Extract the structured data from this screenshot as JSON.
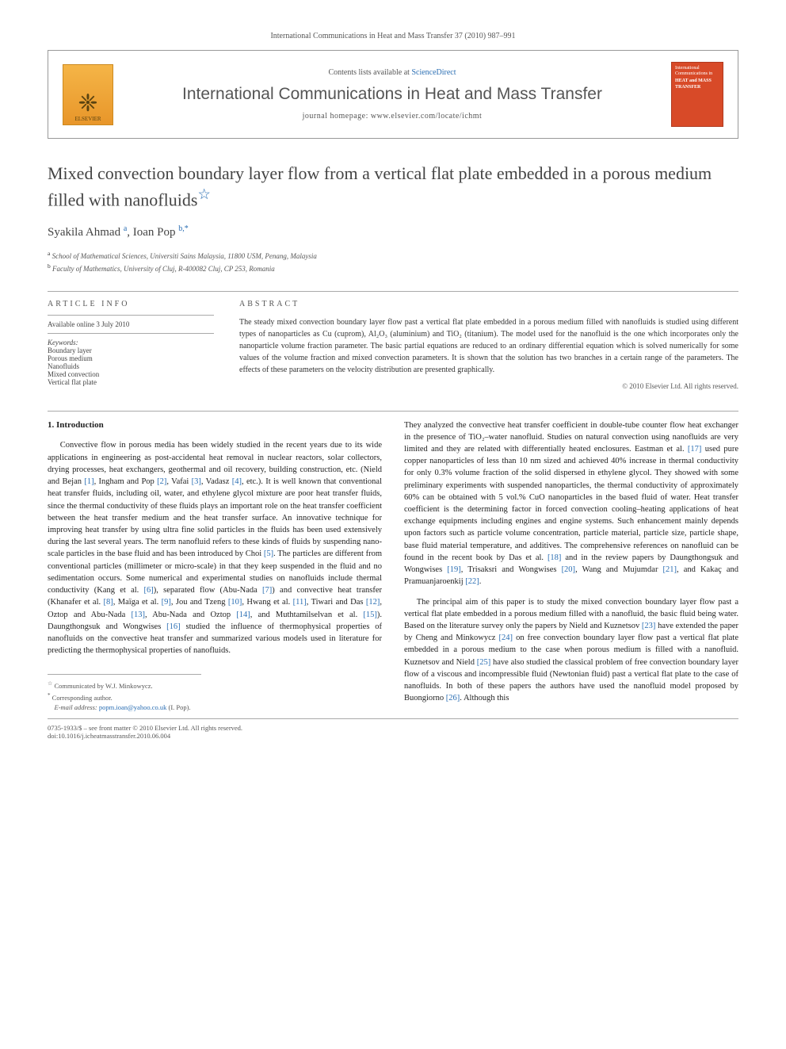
{
  "header": {
    "running": "International Communications in Heat and Mass Transfer 37 (2010) 987–991",
    "contents_line_prefix": "Contents lists available at ",
    "sciencedirect": "ScienceDirect",
    "journal_name": "International Communications in Heat and Mass Transfer",
    "homepage_prefix": "journal homepage: ",
    "homepage_url": "www.elsevier.com/locate/ichmt",
    "elsevier_label": "ELSEVIER",
    "thumb_line1": "International Communications in",
    "thumb_line2": "HEAT and MASS TRANSFER"
  },
  "article": {
    "title": "Mixed convection boundary layer flow from a vertical flat plate embedded in a porous medium filled with nanofluids",
    "star": "☆",
    "authors_html": "Syakila Ahmad <sup>a</sup>, Ioan Pop <sup>b,*</sup>",
    "author1": "Syakila Ahmad",
    "author1_sup": "a",
    "author2": "Ioan Pop",
    "author2_sup": "b,*",
    "affil_a": "School of Mathematical Sciences, Universiti Sains Malaysia, 11800 USM, Penang, Malaysia",
    "affil_b": "Faculty of Mathematics, University of Cluj, R-400082 Cluj, CP 253, Romania"
  },
  "info": {
    "header": "article info",
    "available": "Available online 3 July 2010",
    "keywords_label": "Keywords:",
    "keywords": [
      "Boundary layer",
      "Porous medium",
      "Nanofluids",
      "Mixed convection",
      "Vertical flat plate"
    ]
  },
  "abstract": {
    "header": "abstract",
    "text": "The steady mixed convection boundary layer flow past a vertical flat plate embedded in a porous medium filled with nanofluids is studied using different types of nanoparticles as Cu (cuprom), Al₂O₃ (aluminium) and TiO₂ (titanium). The model used for the nanofluid is the one which incorporates only the nanoparticle volume fraction parameter. The basic partial equations are reduced to an ordinary differential equation which is solved numerically for some values of the volume fraction and mixed convection parameters. It is shown that the solution has two branches in a certain range of the parameters. The effects of these parameters on the velocity distribution are presented graphically.",
    "copyright": "© 2010 Elsevier Ltd. All rights reserved."
  },
  "body": {
    "section_no": "1.",
    "section_title": "Introduction",
    "col1": "Convective flow in porous media has been widely studied in the recent years due to its wide applications in engineering as post-accidental heat removal in nuclear reactors, solar collectors, drying processes, heat exchangers, geothermal and oil recovery, building construction, etc. (Nield and Bejan [1], Ingham and Pop [2], Vafai [3], Vadasz [4], etc.). It is well known that conventional heat transfer fluids, including oil, water, and ethylene glycol mixture are poor heat transfer fluids, since the thermal conductivity of these fluids plays an important role on the heat transfer coefficient between the heat transfer medium and the heat transfer surface. An innovative technique for improving heat transfer by using ultra fine solid particles in the fluids has been used extensively during the last several years. The term nanofluid refers to these kinds of fluids by suspending nano-scale particles in the base fluid and has been introduced by Choi [5]. The particles are different from conventional particles (millimeter or micro-scale) in that they keep suspended in the fluid and no sedimentation occurs. Some numerical and experimental studies on nanofluids include thermal conductivity (Kang et al. [6]), separated flow (Abu-Nada [7]) and convective heat transfer (Khanafer et al. [8], Maïga et al. [9], Jou and Tzeng [10], Hwang et al. [11], Tiwari and Das [12], Oztop and Abu-Nada [13], Abu-Nada and Oztop [14], and Muthtamilselvan et al. [15]). Daungthongsuk and Wongwises [16] studied the influence of thermophysical properties of nanofluids on the convective heat transfer and summarized various models used in literature for predicting the thermophysical properties of nanofluids.",
    "col2a": "They analyzed the convective heat transfer coefficient in double-tube counter flow heat exchanger in the presence of TiO₂–water nanofluid. Studies on natural convection using nanofluids are very limited and they are related with differentially heated enclosures. Eastman et al. [17] used pure copper nanoparticles of less than 10 nm sized and achieved 40% increase in thermal conductivity for only 0.3% volume fraction of the solid dispersed in ethylene glycol. They showed with some preliminary experiments with suspended nanoparticles, the thermal conductivity of approximately 60% can be obtained with 5 vol.% CuO nanoparticles in the based fluid of water. Heat transfer coefficient is the determining factor in forced convection cooling–heating applications of heat exchange equipments including engines and engine systems. Such enhancement mainly depends upon factors such as particle volume concentration, particle material, particle size, particle shape, base fluid material temperature, and additives. The comprehensive references on nanofluid can be found in the recent book by Das et al. [18] and in the review papers by Daungthongsuk and Wongwises [19], Trisaksri and Wongwises [20], Wang and Mujumdar [21], and Kakaç and Pramuanjaroenkij [22].",
    "col2b": "The principal aim of this paper is to study the mixed convection boundary layer flow past a vertical flat plate embedded in a porous medium filled with a nanofluid, the basic fluid being water. Based on the literature survey only the papers by Nield and Kuznetsov [23] have extended the paper by Cheng and Minkowycz [24] on free convection boundary layer flow past a vertical flat plate embedded in a porous medium to the case when porous medium is filled with a nanofluid. Kuznetsov and Nield [25] have also studied the classical problem of free convection boundary layer flow of a viscous and incompressible fluid (Newtonian fluid) past a vertical flat plate to the case of nanofluids. In both of these papers the authors have used the nanofluid model proposed by Buongiorno [26]. Although this"
  },
  "footnotes": {
    "communicated": "Communicated by W.J. Minkowycz.",
    "corresponding": "Corresponding author.",
    "email_label": "E-mail address:",
    "email": "popm.ioan@yahoo.co.uk",
    "email_suffix": "(I. Pop)."
  },
  "bottom": {
    "issn_line": "0735-1933/$ – see front matter © 2010 Elsevier Ltd. All rights reserved.",
    "doi": "doi:10.1016/j.icheatmasstransfer.2010.06.004"
  },
  "colors": {
    "link": "#2a6eb3",
    "text": "#333333",
    "rule": "#aaaaaa",
    "elsevier_bg": "#e8962a",
    "thumb_bg": "#d84a28"
  }
}
